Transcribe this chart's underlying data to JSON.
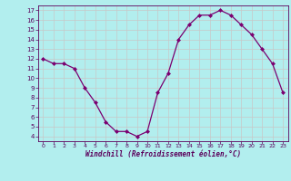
{
  "x": [
    0,
    1,
    2,
    3,
    4,
    5,
    6,
    7,
    8,
    9,
    10,
    11,
    12,
    13,
    14,
    15,
    16,
    17,
    18,
    19,
    20,
    21,
    22,
    23
  ],
  "y": [
    12.0,
    11.5,
    11.5,
    11.0,
    9.0,
    7.5,
    5.5,
    4.5,
    4.5,
    4.0,
    4.5,
    8.5,
    10.5,
    14.0,
    15.5,
    16.5,
    16.5,
    17.0,
    16.5,
    15.5,
    14.5,
    13.0,
    11.5,
    8.5
  ],
  "line_color": "#7b0070",
  "marker": "D",
  "markersize": 2.0,
  "linewidth": 0.9,
  "bg_color": "#b2eeee",
  "grid_color": "#c8c8c8",
  "xlabel": "Windchill (Refroidissement éolien,°C)",
  "xlabel_color": "#5b005b",
  "tick_color": "#5b005b",
  "xlim": [
    -0.5,
    23.5
  ],
  "ylim": [
    3.5,
    17.5
  ],
  "yticks": [
    4,
    5,
    6,
    7,
    8,
    9,
    10,
    11,
    12,
    13,
    14,
    15,
    16,
    17
  ],
  "xticks": [
    0,
    1,
    2,
    3,
    4,
    5,
    6,
    7,
    8,
    9,
    10,
    11,
    12,
    13,
    14,
    15,
    16,
    17,
    18,
    19,
    20,
    21,
    22,
    23
  ]
}
